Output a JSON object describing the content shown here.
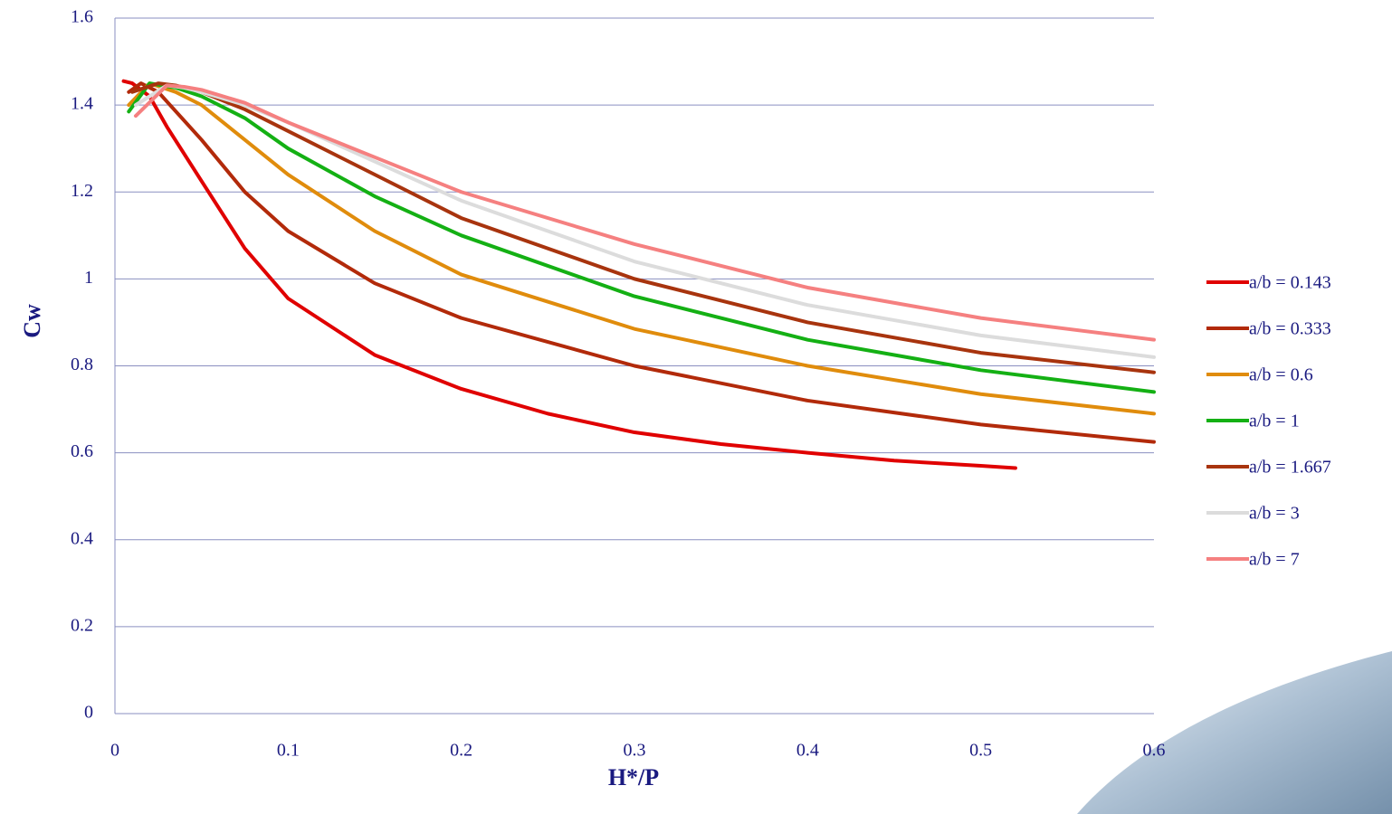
{
  "chart_data": {
    "type": "line",
    "x_label": "H*/P",
    "y_label": "Cw",
    "xlim": [
      0,
      0.6
    ],
    "xticks": [
      0,
      0.1,
      0.2,
      0.3,
      0.4,
      0.5,
      0.6
    ],
    "ylim": [
      0,
      1.6
    ],
    "yticks": [
      0,
      0.2,
      0.4,
      0.6,
      0.8,
      1,
      1.2,
      1.4,
      1.6
    ],
    "grid": true,
    "legend": "right",
    "series": [
      {
        "name": "a/b = 0.143",
        "color": "#e00000",
        "x": [
          0.005,
          0.01,
          0.02,
          0.03,
          0.05,
          0.075,
          0.1,
          0.15,
          0.2,
          0.25,
          0.3,
          0.35,
          0.4,
          0.45,
          0.5,
          0.52
        ],
        "values": [
          1.455,
          1.45,
          1.42,
          1.35,
          1.225,
          1.07,
          0.955,
          0.825,
          0.747,
          0.69,
          0.647,
          0.62,
          0.6,
          0.582,
          0.57,
          0.565
        ]
      },
      {
        "name": "a/b = 0.333",
        "color": "#b22a0a",
        "x": [
          0.008,
          0.015,
          0.025,
          0.05,
          0.075,
          0.1,
          0.15,
          0.2,
          0.3,
          0.4,
          0.5,
          0.6
        ],
        "values": [
          1.43,
          1.45,
          1.43,
          1.32,
          1.2,
          1.11,
          0.99,
          0.91,
          0.8,
          0.72,
          0.665,
          0.625
        ]
      },
      {
        "name": "a/b = 0.6",
        "color": "#e08c0c",
        "x": [
          0.008,
          0.02,
          0.035,
          0.05,
          0.075,
          0.1,
          0.15,
          0.2,
          0.3,
          0.4,
          0.5,
          0.6
        ],
        "values": [
          1.4,
          1.45,
          1.43,
          1.4,
          1.32,
          1.24,
          1.11,
          1.01,
          0.885,
          0.8,
          0.735,
          0.69
        ]
      },
      {
        "name": "a/b = 1",
        "color": "#14b014",
        "x": [
          0.008,
          0.02,
          0.035,
          0.05,
          0.075,
          0.1,
          0.15,
          0.2,
          0.3,
          0.4,
          0.5,
          0.6
        ],
        "values": [
          1.385,
          1.45,
          1.44,
          1.42,
          1.37,
          1.3,
          1.19,
          1.1,
          0.96,
          0.86,
          0.79,
          0.74
        ]
      },
      {
        "name": "a/b = 1.667",
        "color": "#a8340e",
        "x": [
          0.01,
          0.025,
          0.035,
          0.05,
          0.075,
          0.1,
          0.15,
          0.2,
          0.3,
          0.4,
          0.5,
          0.6
        ],
        "values": [
          1.43,
          1.45,
          1.445,
          1.43,
          1.39,
          1.34,
          1.24,
          1.14,
          1.0,
          0.9,
          0.83,
          0.785
        ]
      },
      {
        "name": "a/b = 3",
        "color": "#dcdcdc",
        "x": [
          0.012,
          0.03,
          0.04,
          0.05,
          0.075,
          0.1,
          0.15,
          0.2,
          0.3,
          0.4,
          0.5,
          0.6
        ],
        "values": [
          1.4,
          1.445,
          1.44,
          1.43,
          1.4,
          1.36,
          1.27,
          1.18,
          1.04,
          0.94,
          0.87,
          0.82
        ]
      },
      {
        "name": "a/b = 7",
        "color": "#f58080",
        "x": [
          0.012,
          0.03,
          0.04,
          0.05,
          0.075,
          0.1,
          0.15,
          0.2,
          0.3,
          0.4,
          0.5,
          0.6
        ],
        "values": [
          1.375,
          1.445,
          1.442,
          1.435,
          1.405,
          1.36,
          1.28,
          1.2,
          1.08,
          0.98,
          0.91,
          0.86
        ]
      }
    ]
  }
}
